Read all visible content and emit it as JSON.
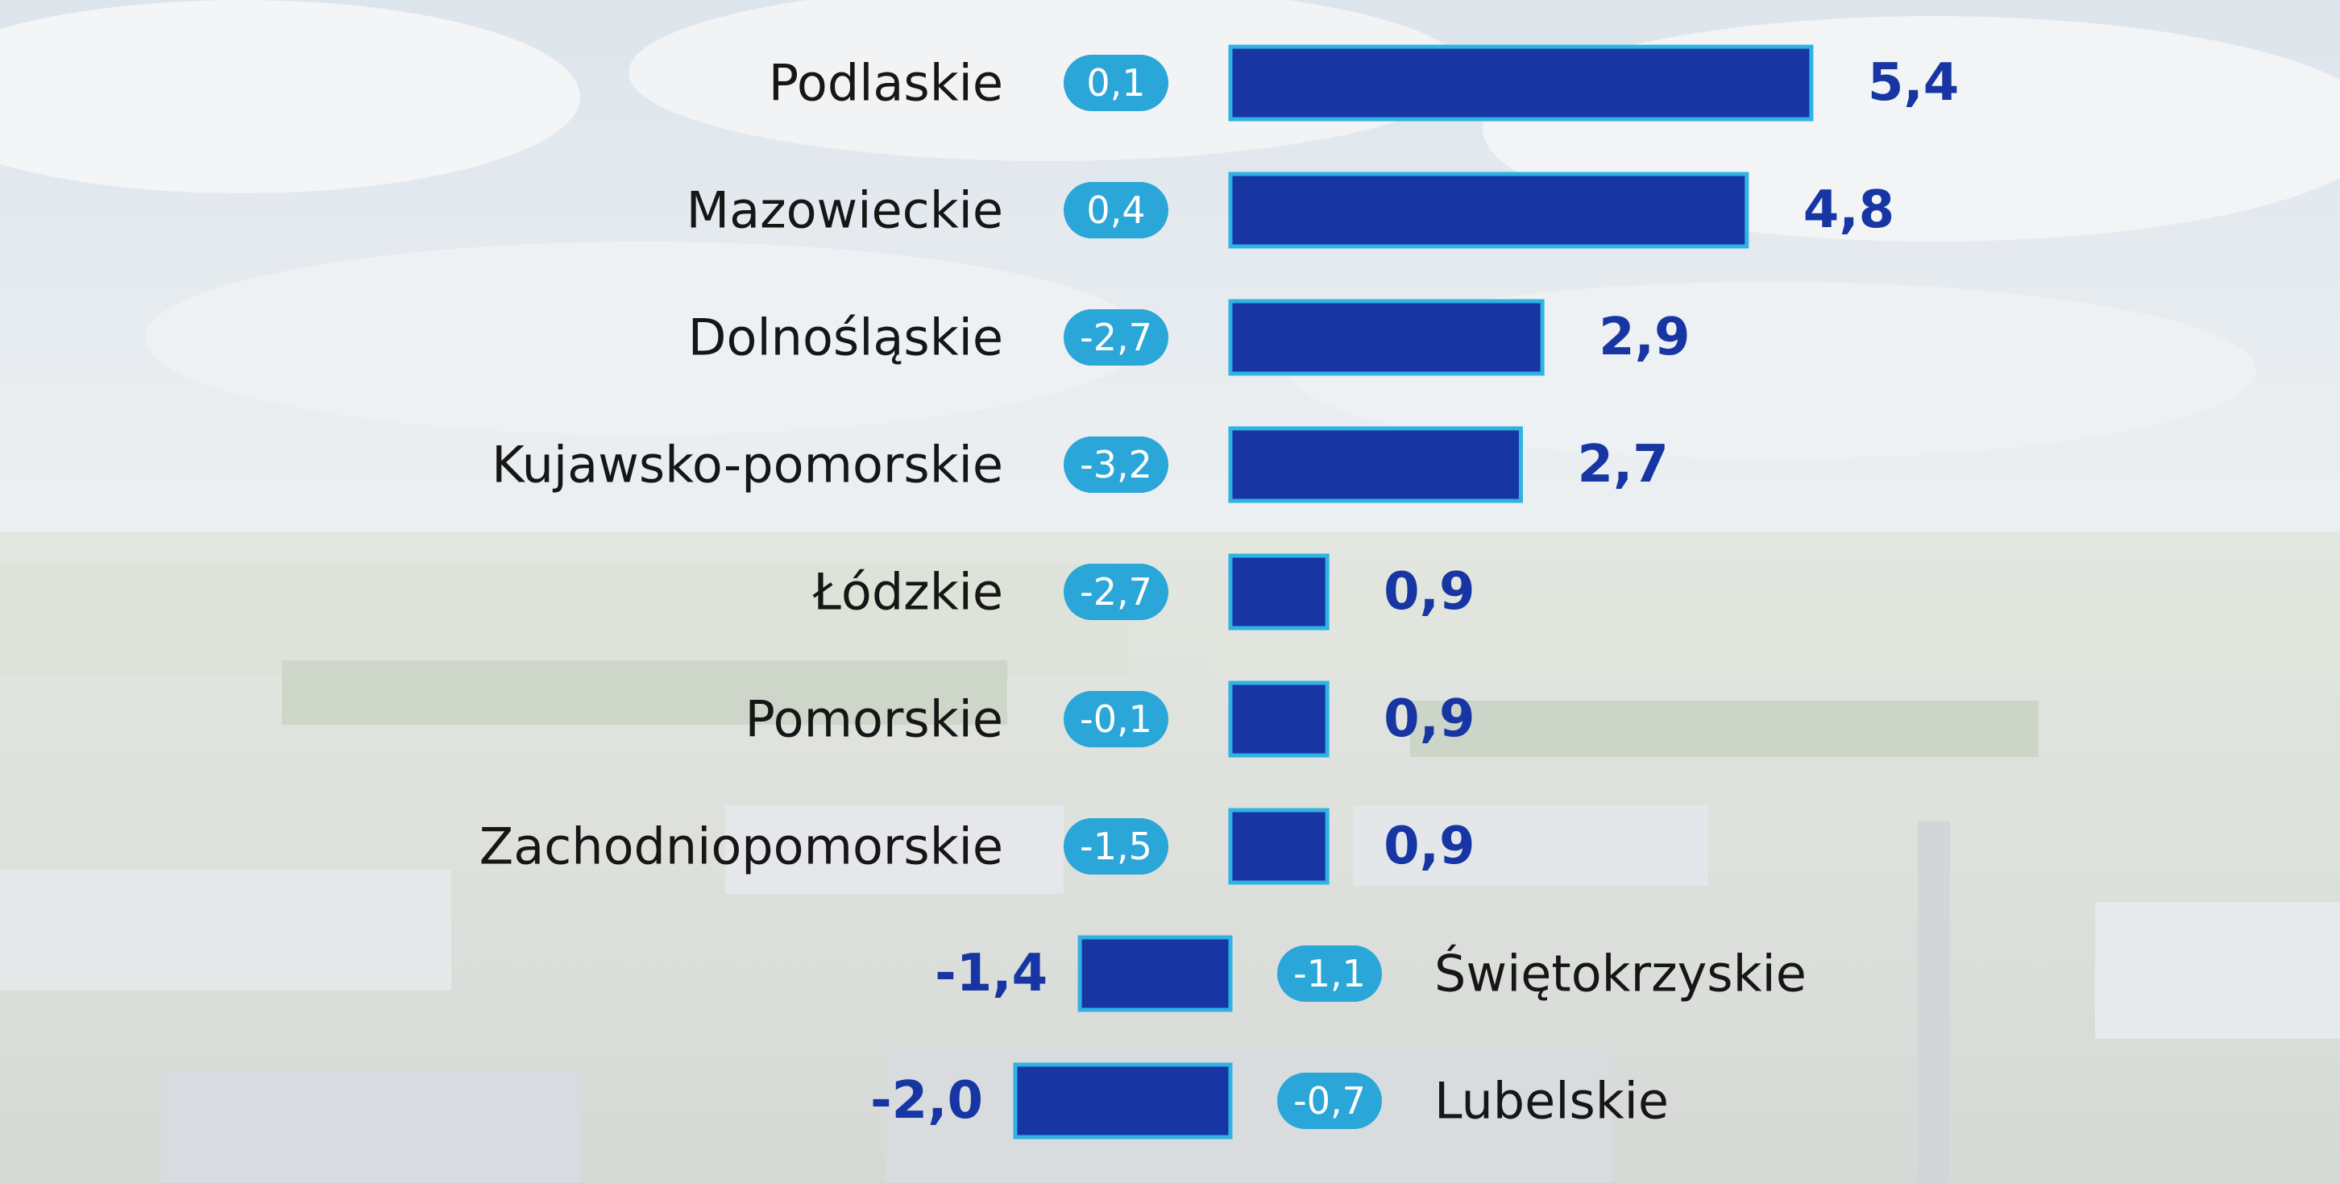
{
  "colors": {
    "bar_fill": "#1736a4",
    "bar_border": "#2fb3e2",
    "change_badge": "#2aa6d8",
    "value_text": "#1736a4",
    "label_text": "#161616"
  },
  "chart_data": {
    "type": "bar",
    "orientation": "horizontal",
    "categories": [
      "Podlaskie",
      "Mazowieckie",
      "Dolnośląskie",
      "Kujawsko-pomorskie",
      "Łódzkie",
      "Pomorskie",
      "Zachodniopomorskie",
      "Świętokrzyskie",
      "Lubelskie"
    ],
    "values": [
      5.4,
      4.8,
      2.9,
      2.7,
      0.9,
      0.9,
      0.9,
      -1.4,
      -2.0
    ],
    "value_labels": [
      "5,4",
      "4,8",
      "2,9",
      "2,7",
      "0,9",
      "0,9",
      "0,9",
      "-1,4",
      "-2,0"
    ],
    "change_values": [
      0.1,
      0.4,
      -2.7,
      -3.2,
      -2.7,
      -0.1,
      -1.5,
      -1.1,
      -0.7
    ],
    "change_labels": [
      "0,1",
      "0,4",
      "-2,7",
      "-3,2",
      "-2,7",
      "-0,1",
      "-1,5",
      "-1,1",
      "-0,7"
    ],
    "title": "",
    "xlabel": "",
    "ylabel": "",
    "grid": false,
    "legend": "none"
  }
}
